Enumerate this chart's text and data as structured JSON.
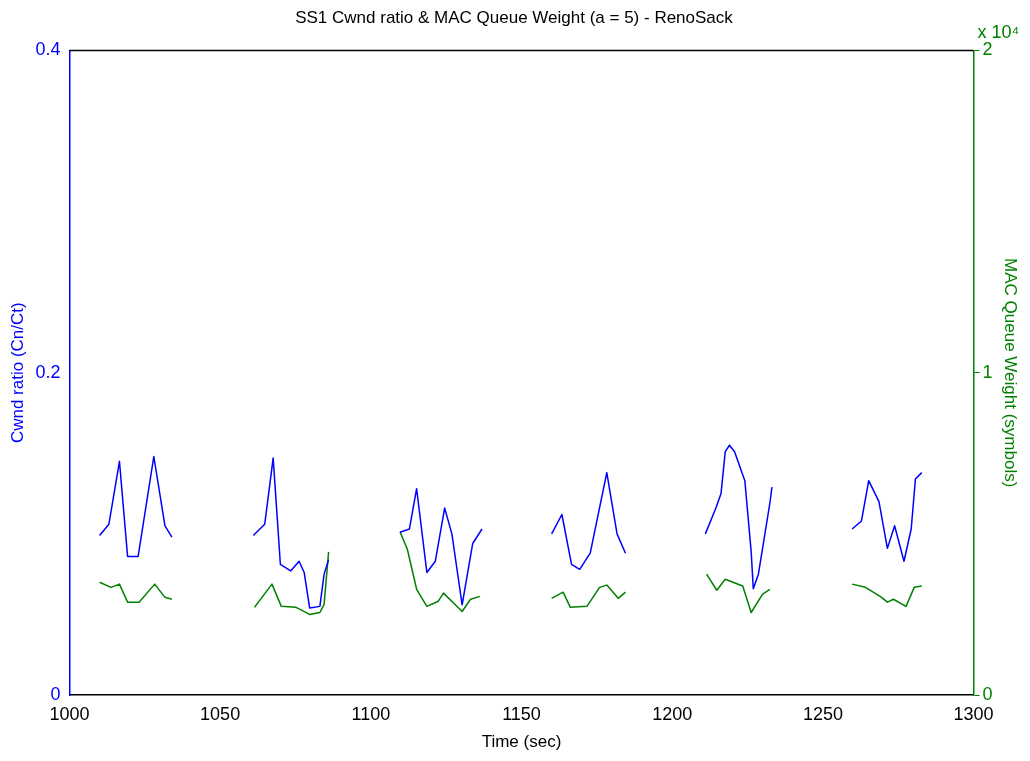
{
  "chart_data": {
    "type": "line",
    "title": "SS1 Cwnd ratio & MAC Queue Weight (a = 5) - RenoSack",
    "xlabel": "Time (sec)",
    "ylabel": "Cwnd ratio (Cn/Ct)",
    "y2label": "MAC Queue Weight (symbols)",
    "annotations": [
      "x 10⁴"
    ],
    "xlim": [
      1000,
      1300
    ],
    "xticks": [
      1000,
      1050,
      1100,
      1150,
      1200,
      1250,
      1300
    ],
    "ylim": [
      0,
      0.4
    ],
    "yticks": [
      0,
      0.2,
      0.4
    ],
    "y2lim": [
      0,
      2
    ],
    "y2ticks": [
      0,
      1,
      2
    ],
    "grid": false,
    "legend": false,
    "series": [
      {
        "color": "#0000ff",
        "x": [
          1010,
          1013.1,
          1016.6,
          1019.3,
          1022.8,
          1028,
          1031.7,
          1034,
          1048,
          1061,
          1064.8,
          1067.6,
          1070,
          1073.4,
          1076.2,
          1077.9,
          1079.7,
          1083.1,
          1084.5,
          1086,
          1098,
          1109.7,
          1112.8,
          1115.2,
          1118.6,
          1121.4,
          1124.5,
          1126.9,
          1130.3,
          1133.8,
          1136.9,
          1148,
          1160,
          1163.4,
          1166.6,
          1169.3,
          1172.8,
          1178.3,
          1181.7,
          1184.5,
          1198,
          1211,
          1214.5,
          1216.2,
          1217.6,
          1219,
          1220.7,
          1224.1,
          1226.2,
          1226.9,
          1228.6,
          1232.4,
          1233.1,
          1246,
          1259.7,
          1262.8,
          1265.2,
          1268.6,
          1271.4,
          1273.8,
          1276.9,
          1279.3,
          1280.7,
          1282.8
        ],
        "values": [
          0.099,
          0.106,
          0.145,
          0.086,
          0.086,
          0.148,
          0.105,
          0.098,
          null,
          0.099,
          0.106,
          0.147,
          0.081,
          0.077,
          0.083,
          0.076,
          0.054,
          0.055,
          0.075,
          0.084,
          null,
          0.101,
          0.103,
          0.128,
          0.076,
          0.083,
          0.116,
          0.1,
          0.056,
          0.094,
          0.103,
          null,
          0.1,
          0.112,
          0.081,
          0.078,
          0.088,
          0.138,
          0.1,
          0.088,
          null,
          0.1,
          0.116,
          0.125,
          0.151,
          0.155,
          0.151,
          0.133,
          0.089,
          0.066,
          0.075,
          0.119,
          0.129,
          null,
          0.103,
          0.108,
          0.133,
          0.12,
          0.091,
          0.105,
          0.083,
          0.103,
          0.134,
          0.138
        ]
      },
      {
        "color": "#008000",
        "axis": "y2",
        "x": [
          1010,
          1013.8,
          1016.6,
          1019.3,
          1023.1,
          1028.3,
          1031.7,
          1034,
          1048,
          1061.4,
          1067.2,
          1070.3,
          1075.2,
          1079.7,
          1083.1,
          1084.5,
          1086,
          1098,
          1109.7,
          1112.1,
          1115.2,
          1118.6,
          1122.4,
          1124.1,
          1130.3,
          1133.1,
          1136.2,
          1148,
          1160,
          1163.8,
          1166.2,
          1171.7,
          1175.9,
          1178.3,
          1182.1,
          1184.5,
          1198,
          1211.4,
          1214.8,
          1217.6,
          1223.4,
          1226.2,
          1230,
          1232.4,
          1246,
          1259.7,
          1264.1,
          1269,
          1271.4,
          1273.4,
          1277.6,
          1280.3,
          1282.8
        ],
        "values": [
          0.35,
          0.334,
          0.344,
          0.288,
          0.288,
          0.344,
          0.303,
          0.297,
          null,
          0.272,
          0.344,
          0.275,
          0.272,
          0.25,
          0.256,
          0.281,
          0.444,
          null,
          0.506,
          0.453,
          0.328,
          0.275,
          0.291,
          0.316,
          0.259,
          0.297,
          0.306,
          null,
          0.3,
          0.319,
          0.272,
          0.275,
          0.334,
          0.341,
          0.3,
          0.319,
          null,
          0.375,
          0.325,
          0.359,
          0.338,
          0.256,
          0.313,
          0.328,
          null,
          0.344,
          0.334,
          0.306,
          0.288,
          0.297,
          0.275,
          0.334,
          0.338
        ]
      }
    ]
  }
}
